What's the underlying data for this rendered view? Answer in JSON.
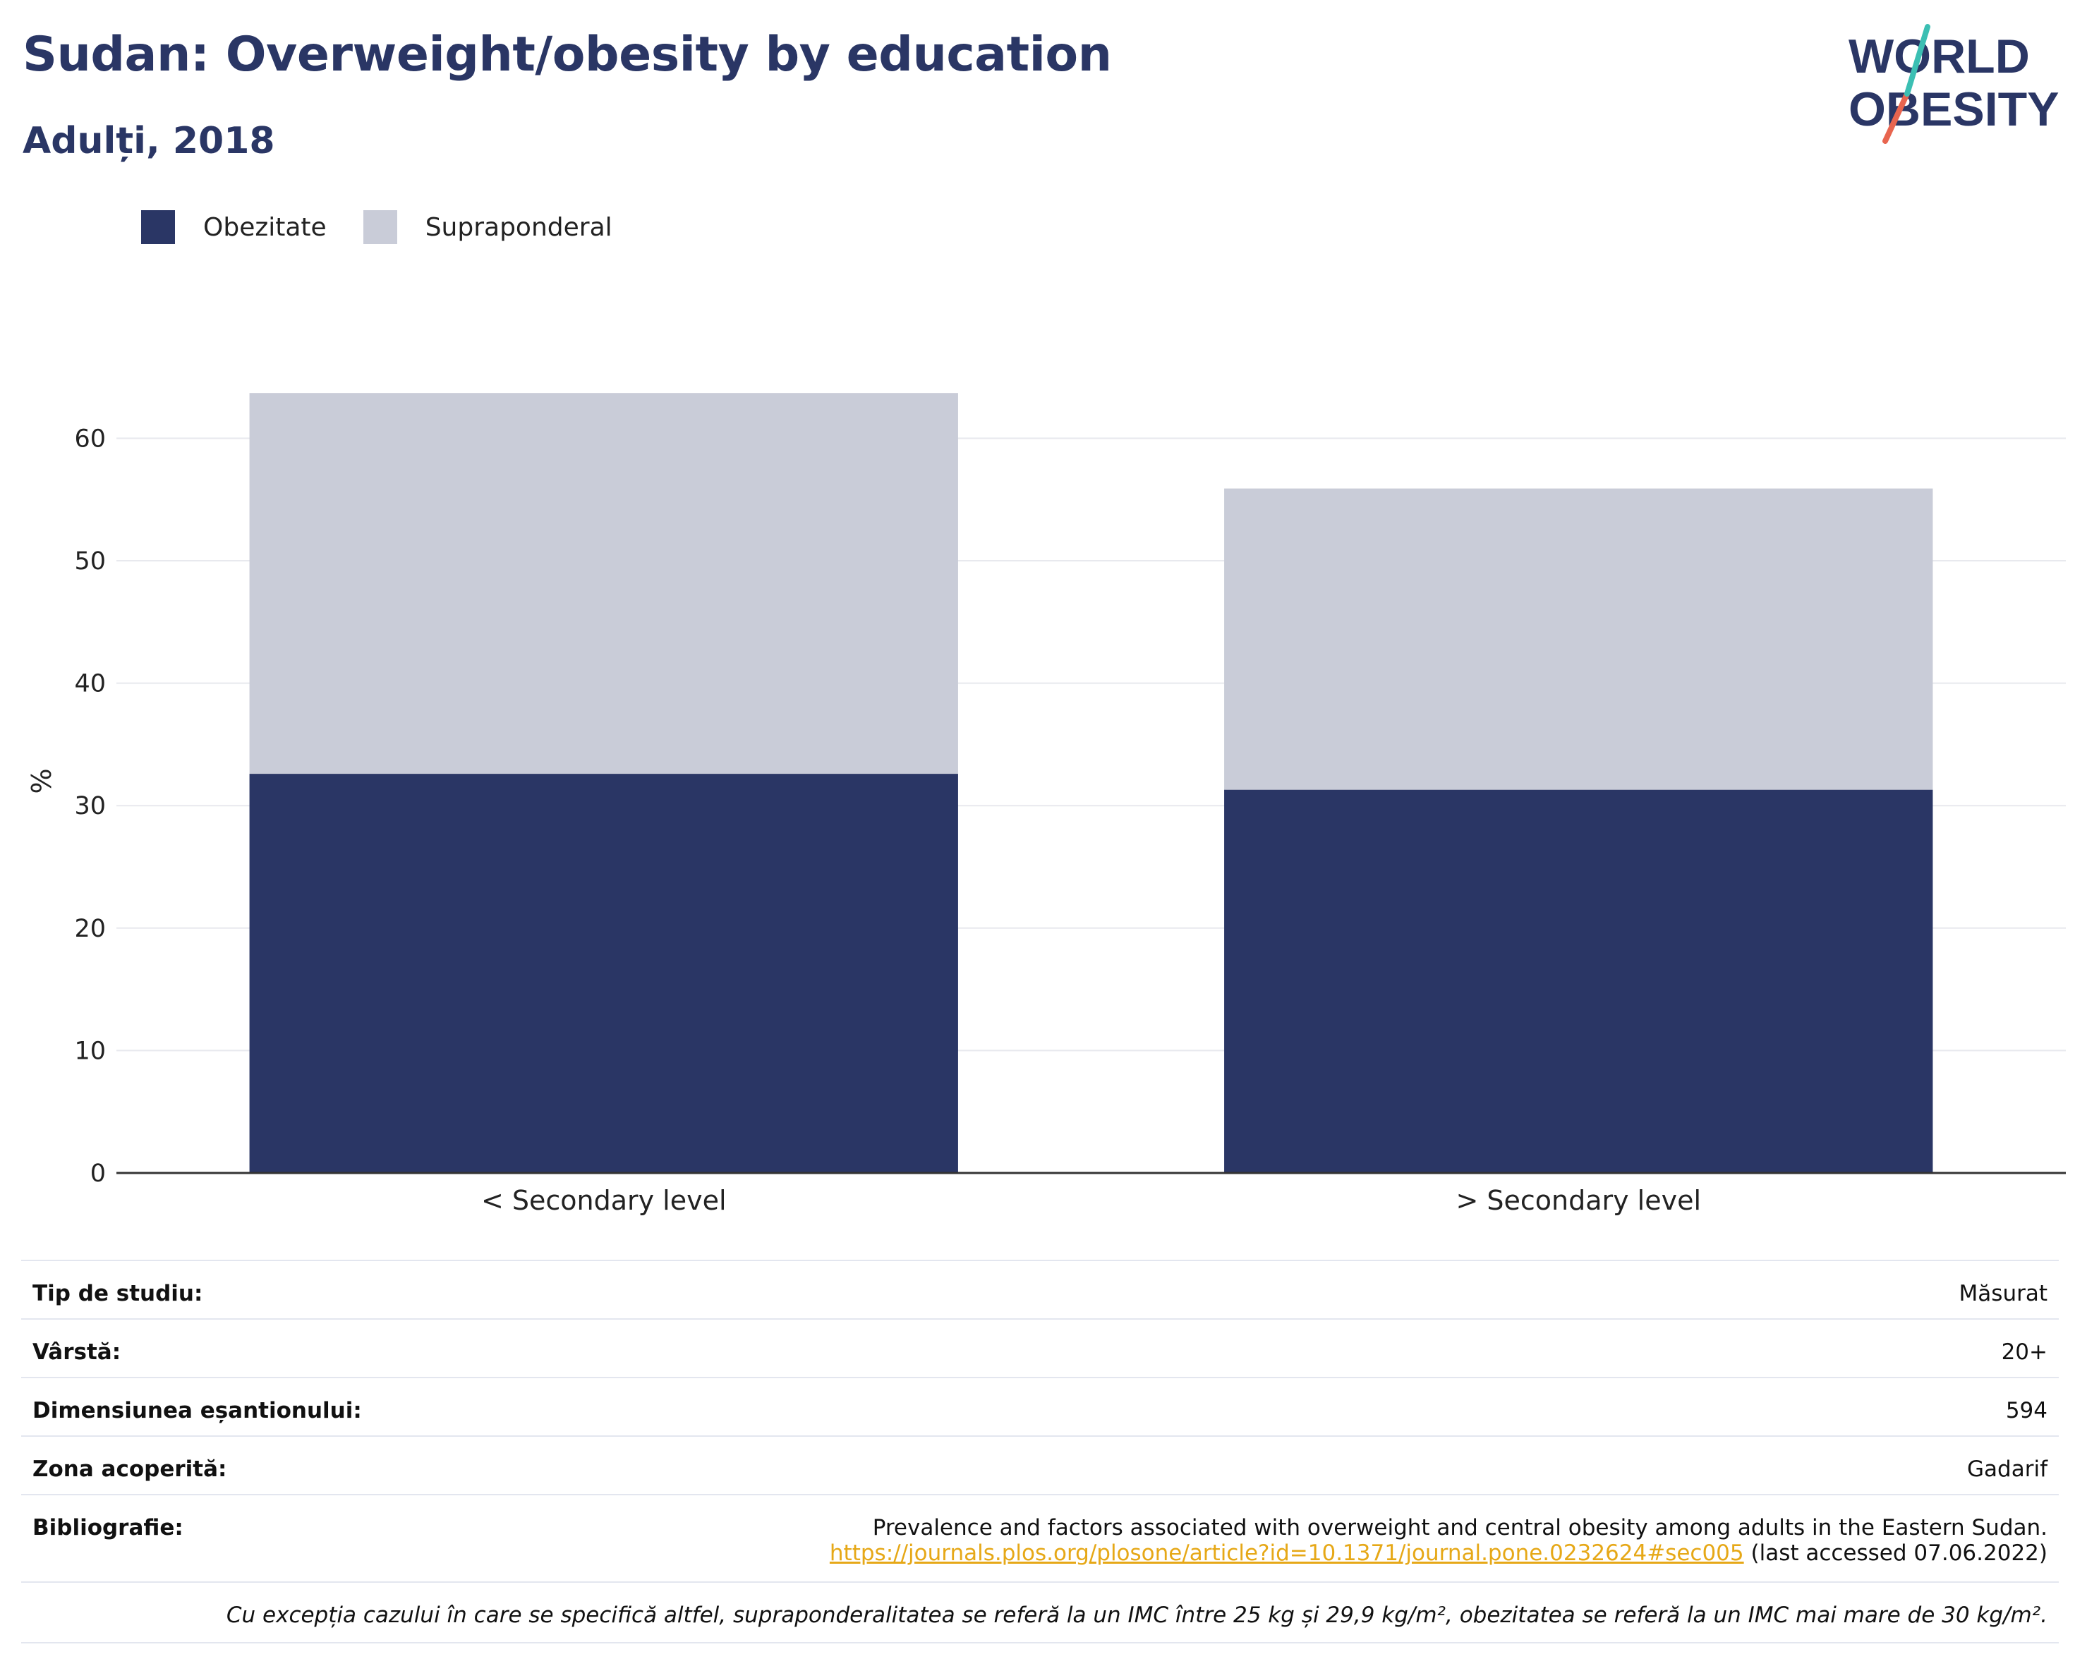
{
  "title": "Sudan: Overweight/obesity by education",
  "subtitle": "Adulți, 2018",
  "logo": {
    "line1": "WORLD",
    "line2": "OBESITY"
  },
  "colors": {
    "obesity": "#2a3665",
    "overweight": "#c9ccd8",
    "title": "#2a3665",
    "link": "#e6a817",
    "logo_slash_top": "#3bbfb3",
    "logo_slash_bottom": "#e8654f"
  },
  "chart_data": {
    "type": "bar",
    "stacked": true,
    "categories": [
      "< Secondary level",
      "> Secondary level"
    ],
    "series": [
      {
        "name": "Obezitate",
        "values": [
          32.6,
          31.3
        ]
      },
      {
        "name": "Supraponderal",
        "values": [
          31.1,
          24.6
        ]
      }
    ],
    "ylabel": "%",
    "ylim": [
      0,
      65
    ],
    "yticks": [
      0,
      10,
      20,
      30,
      40,
      50,
      60
    ],
    "grid": true,
    "legend": "top-left"
  },
  "info": {
    "study_type_label": "Tip de studiu:",
    "study_type": "Măsurat",
    "age_label": "Vârstă:",
    "age": "20+",
    "sample_label": "Dimensiunea eșantionului:",
    "sample": "594",
    "area_label": "Zona acoperită:",
    "area": "Gadarif",
    "biblio_label": "Bibliografie:",
    "biblio_text": "Prevalence and factors associated with overweight and central obesity among adults in the Eastern Sudan.",
    "biblio_url": "https://journals.plos.org/plosone/article?id=10.1371/journal.pone.0232624#sec005",
    "biblio_accessed": "(last accessed 07.06.2022)",
    "note": "Cu excepția cazului în care se specifică altfel, supraponderalitatea se referă la un IMC între 25 kg și 29,9 kg/m², obezitatea se referă la un IMC mai mare de 30 kg/m²."
  }
}
